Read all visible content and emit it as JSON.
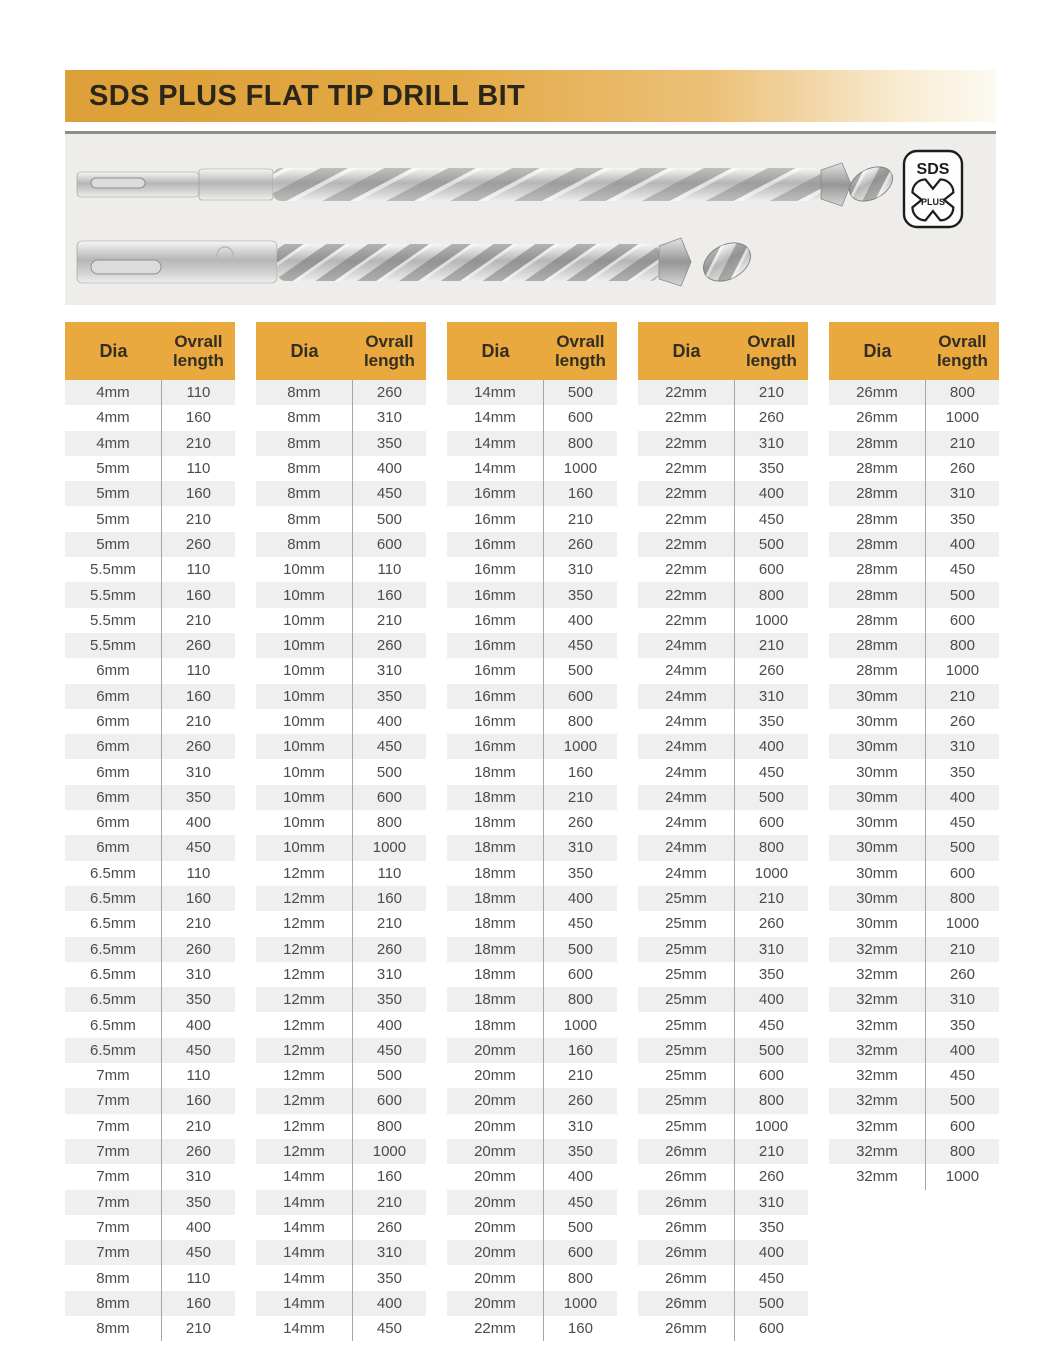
{
  "title": "SDS PLUS FLAT TIP DRILL BIT",
  "badge": {
    "top": "SDS",
    "inner": "PLUS"
  },
  "columns": {
    "dia": "Dia",
    "length_l1": "Ovrall",
    "length_l2": "length"
  },
  "colors": {
    "accent_header": "#e9a93e",
    "banner_gold": "#dda039",
    "row_alt": "#efefef",
    "panel_bg": "#efedea",
    "row_text": "#4b4b4b",
    "header_text": "#332e24"
  },
  "tables": [
    {
      "rows": [
        [
          "4mm",
          "110"
        ],
        [
          "4mm",
          "160"
        ],
        [
          "4mm",
          "210"
        ],
        [
          "5mm",
          "110"
        ],
        [
          "5mm",
          "160"
        ],
        [
          "5mm",
          "210"
        ],
        [
          "5mm",
          "260"
        ],
        [
          "5.5mm",
          "110"
        ],
        [
          "5.5mm",
          "160"
        ],
        [
          "5.5mm",
          "210"
        ],
        [
          "5.5mm",
          "260"
        ],
        [
          "6mm",
          "110"
        ],
        [
          "6mm",
          "160"
        ],
        [
          "6mm",
          "210"
        ],
        [
          "6mm",
          "260"
        ],
        [
          "6mm",
          "310"
        ],
        [
          "6mm",
          "350"
        ],
        [
          "6mm",
          "400"
        ],
        [
          "6mm",
          "450"
        ],
        [
          "6.5mm",
          "110"
        ],
        [
          "6.5mm",
          "160"
        ],
        [
          "6.5mm",
          "210"
        ],
        [
          "6.5mm",
          "260"
        ],
        [
          "6.5mm",
          "310"
        ],
        [
          "6.5mm",
          "350"
        ],
        [
          "6.5mm",
          "400"
        ],
        [
          "6.5mm",
          "450"
        ],
        [
          "7mm",
          "110"
        ],
        [
          "7mm",
          "160"
        ],
        [
          "7mm",
          "210"
        ],
        [
          "7mm",
          "260"
        ],
        [
          "7mm",
          "310"
        ],
        [
          "7mm",
          "350"
        ],
        [
          "7mm",
          "400"
        ],
        [
          "7mm",
          "450"
        ],
        [
          "8mm",
          "110"
        ],
        [
          "8mm",
          "160"
        ],
        [
          "8mm",
          "210"
        ]
      ]
    },
    {
      "rows": [
        [
          "8mm",
          "260"
        ],
        [
          "8mm",
          "310"
        ],
        [
          "8mm",
          "350"
        ],
        [
          "8mm",
          "400"
        ],
        [
          "8mm",
          "450"
        ],
        [
          "8mm",
          "500"
        ],
        [
          "8mm",
          "600"
        ],
        [
          "10mm",
          "110"
        ],
        [
          "10mm",
          "160"
        ],
        [
          "10mm",
          "210"
        ],
        [
          "10mm",
          "260"
        ],
        [
          "10mm",
          "310"
        ],
        [
          "10mm",
          "350"
        ],
        [
          "10mm",
          "400"
        ],
        [
          "10mm",
          "450"
        ],
        [
          "10mm",
          "500"
        ],
        [
          "10mm",
          "600"
        ],
        [
          "10mm",
          "800"
        ],
        [
          "10mm",
          "1000"
        ],
        [
          "12mm",
          "110"
        ],
        [
          "12mm",
          "160"
        ],
        [
          "12mm",
          "210"
        ],
        [
          "12mm",
          "260"
        ],
        [
          "12mm",
          "310"
        ],
        [
          "12mm",
          "350"
        ],
        [
          "12mm",
          "400"
        ],
        [
          "12mm",
          "450"
        ],
        [
          "12mm",
          "500"
        ],
        [
          "12mm",
          "600"
        ],
        [
          "12mm",
          "800"
        ],
        [
          "12mm",
          "1000"
        ],
        [
          "14mm",
          "160"
        ],
        [
          "14mm",
          "210"
        ],
        [
          "14mm",
          "260"
        ],
        [
          "14mm",
          "310"
        ],
        [
          "14mm",
          "350"
        ],
        [
          "14mm",
          "400"
        ],
        [
          "14mm",
          "450"
        ]
      ]
    },
    {
      "rows": [
        [
          "14mm",
          "500"
        ],
        [
          "14mm",
          "600"
        ],
        [
          "14mm",
          "800"
        ],
        [
          "14mm",
          "1000"
        ],
        [
          "16mm",
          "160"
        ],
        [
          "16mm",
          "210"
        ],
        [
          "16mm",
          "260"
        ],
        [
          "16mm",
          "310"
        ],
        [
          "16mm",
          "350"
        ],
        [
          "16mm",
          "400"
        ],
        [
          "16mm",
          "450"
        ],
        [
          "16mm",
          "500"
        ],
        [
          "16mm",
          "600"
        ],
        [
          "16mm",
          "800"
        ],
        [
          "16mm",
          "1000"
        ],
        [
          "18mm",
          "160"
        ],
        [
          "18mm",
          "210"
        ],
        [
          "18mm",
          "260"
        ],
        [
          "18mm",
          "310"
        ],
        [
          "18mm",
          "350"
        ],
        [
          "18mm",
          "400"
        ],
        [
          "18mm",
          "450"
        ],
        [
          "18mm",
          "500"
        ],
        [
          "18mm",
          "600"
        ],
        [
          "18mm",
          "800"
        ],
        [
          "18mm",
          "1000"
        ],
        [
          "20mm",
          "160"
        ],
        [
          "20mm",
          "210"
        ],
        [
          "20mm",
          "260"
        ],
        [
          "20mm",
          "310"
        ],
        [
          "20mm",
          "350"
        ],
        [
          "20mm",
          "400"
        ],
        [
          "20mm",
          "450"
        ],
        [
          "20mm",
          "500"
        ],
        [
          "20mm",
          "600"
        ],
        [
          "20mm",
          "800"
        ],
        [
          "20mm",
          "1000"
        ],
        [
          "22mm",
          "160"
        ]
      ]
    },
    {
      "rows": [
        [
          "22mm",
          "210"
        ],
        [
          "22mm",
          "260"
        ],
        [
          "22mm",
          "310"
        ],
        [
          "22mm",
          "350"
        ],
        [
          "22mm",
          "400"
        ],
        [
          "22mm",
          "450"
        ],
        [
          "22mm",
          "500"
        ],
        [
          "22mm",
          "600"
        ],
        [
          "22mm",
          "800"
        ],
        [
          "22mm",
          "1000"
        ],
        [
          "24mm",
          "210"
        ],
        [
          "24mm",
          "260"
        ],
        [
          "24mm",
          "310"
        ],
        [
          "24mm",
          "350"
        ],
        [
          "24mm",
          "400"
        ],
        [
          "24mm",
          "450"
        ],
        [
          "24mm",
          "500"
        ],
        [
          "24mm",
          "600"
        ],
        [
          "24mm",
          "800"
        ],
        [
          "24mm",
          "1000"
        ],
        [
          "25mm",
          "210"
        ],
        [
          "25mm",
          "260"
        ],
        [
          "25mm",
          "310"
        ],
        [
          "25mm",
          "350"
        ],
        [
          "25mm",
          "400"
        ],
        [
          "25mm",
          "450"
        ],
        [
          "25mm",
          "500"
        ],
        [
          "25mm",
          "600"
        ],
        [
          "25mm",
          "800"
        ],
        [
          "25mm",
          "1000"
        ],
        [
          "26mm",
          "210"
        ],
        [
          "26mm",
          "260"
        ],
        [
          "26mm",
          "310"
        ],
        [
          "26mm",
          "350"
        ],
        [
          "26mm",
          "400"
        ],
        [
          "26mm",
          "450"
        ],
        [
          "26mm",
          "500"
        ],
        [
          "26mm",
          "600"
        ]
      ]
    },
    {
      "rows": [
        [
          "26mm",
          "800"
        ],
        [
          "26mm",
          "1000"
        ],
        [
          "28mm",
          "210"
        ],
        [
          "28mm",
          "260"
        ],
        [
          "28mm",
          "310"
        ],
        [
          "28mm",
          "350"
        ],
        [
          "28mm",
          "400"
        ],
        [
          "28mm",
          "450"
        ],
        [
          "28mm",
          "500"
        ],
        [
          "28mm",
          "600"
        ],
        [
          "28mm",
          "800"
        ],
        [
          "28mm",
          "1000"
        ],
        [
          "30mm",
          "210"
        ],
        [
          "30mm",
          "260"
        ],
        [
          "30mm",
          "310"
        ],
        [
          "30mm",
          "350"
        ],
        [
          "30mm",
          "400"
        ],
        [
          "30mm",
          "450"
        ],
        [
          "30mm",
          "500"
        ],
        [
          "30mm",
          "600"
        ],
        [
          "30mm",
          "800"
        ],
        [
          "30mm",
          "1000"
        ],
        [
          "32mm",
          "210"
        ],
        [
          "32mm",
          "260"
        ],
        [
          "32mm",
          "310"
        ],
        [
          "32mm",
          "350"
        ],
        [
          "32mm",
          "400"
        ],
        [
          "32mm",
          "450"
        ],
        [
          "32mm",
          "500"
        ],
        [
          "32mm",
          "600"
        ],
        [
          "32mm",
          "800"
        ],
        [
          "32mm",
          "1000"
        ]
      ]
    }
  ]
}
